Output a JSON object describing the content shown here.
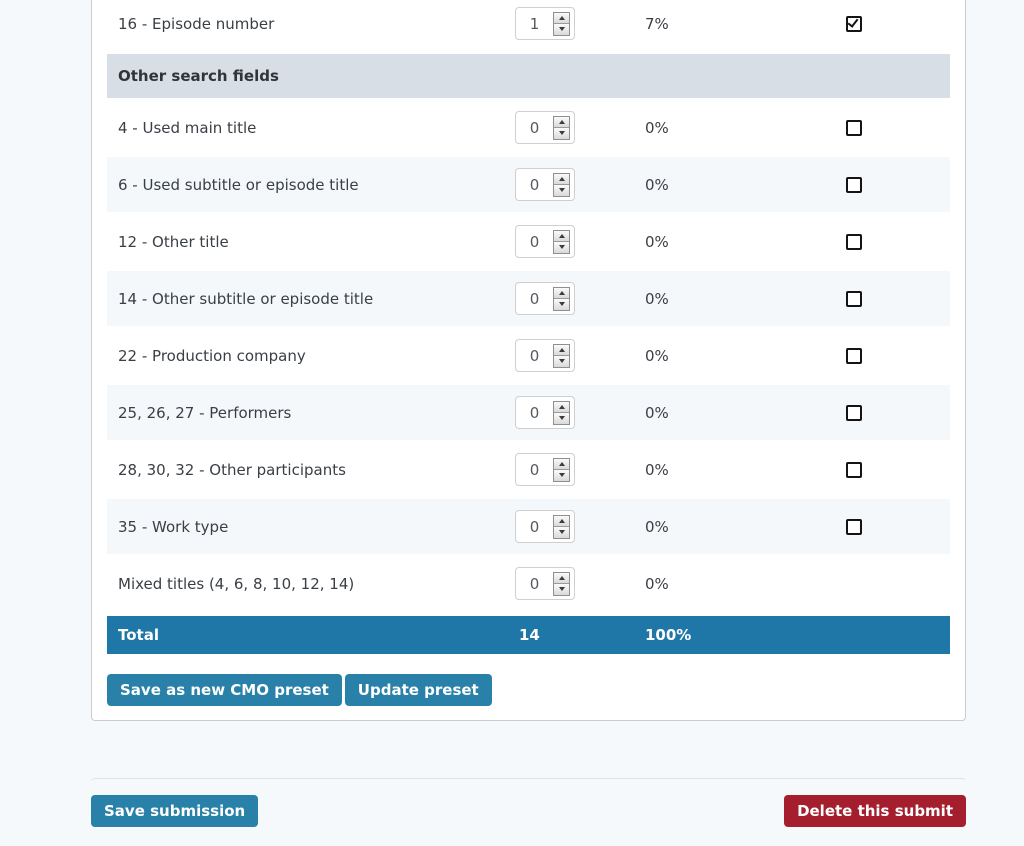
{
  "colors": {
    "page_background": "#f6f9fc",
    "total_row_bg": "#1f77a8",
    "section_header_bg": "#d8dee5",
    "stripe_row_bg": "#f4f8fb",
    "primary_button_bg": "#2980a9",
    "danger_button_bg": "#a41e2d"
  },
  "table": {
    "rows": [
      {
        "label": "16 - Episode number",
        "value": "1",
        "percent": "7%",
        "has_checkbox": true,
        "checked": true
      },
      {
        "type": "section_header",
        "label": "Other search fields"
      },
      {
        "label": "4 - Used main title",
        "value": "0",
        "percent": "0%",
        "has_checkbox": true,
        "checked": false
      },
      {
        "label": "6 - Used subtitle or episode title",
        "value": "0",
        "percent": "0%",
        "has_checkbox": true,
        "checked": false
      },
      {
        "label": "12 - Other title",
        "value": "0",
        "percent": "0%",
        "has_checkbox": true,
        "checked": false
      },
      {
        "label": "14 - Other subtitle or episode title",
        "value": "0",
        "percent": "0%",
        "has_checkbox": true,
        "checked": false
      },
      {
        "label": "22 - Production company",
        "value": "0",
        "percent": "0%",
        "has_checkbox": true,
        "checked": false
      },
      {
        "label": "25, 26, 27 - Performers",
        "value": "0",
        "percent": "0%",
        "has_checkbox": true,
        "checked": false
      },
      {
        "label": "28, 30, 32 - Other participants",
        "value": "0",
        "percent": "0%",
        "has_checkbox": true,
        "checked": false
      },
      {
        "label": "35 - Work type",
        "value": "0",
        "percent": "0%",
        "has_checkbox": true,
        "checked": false
      },
      {
        "label": "Mixed titles (4, 6, 8, 10, 12, 14)",
        "value": "0",
        "percent": "0%",
        "has_checkbox": false,
        "checked": false
      }
    ],
    "total": {
      "label": "Total",
      "count": "14",
      "percent": "100%"
    }
  },
  "preset_buttons": {
    "save_new": "Save as new CMO preset",
    "update": "Update preset"
  },
  "footer": {
    "save_label": "Save submission",
    "delete_label": "Delete this submit"
  }
}
